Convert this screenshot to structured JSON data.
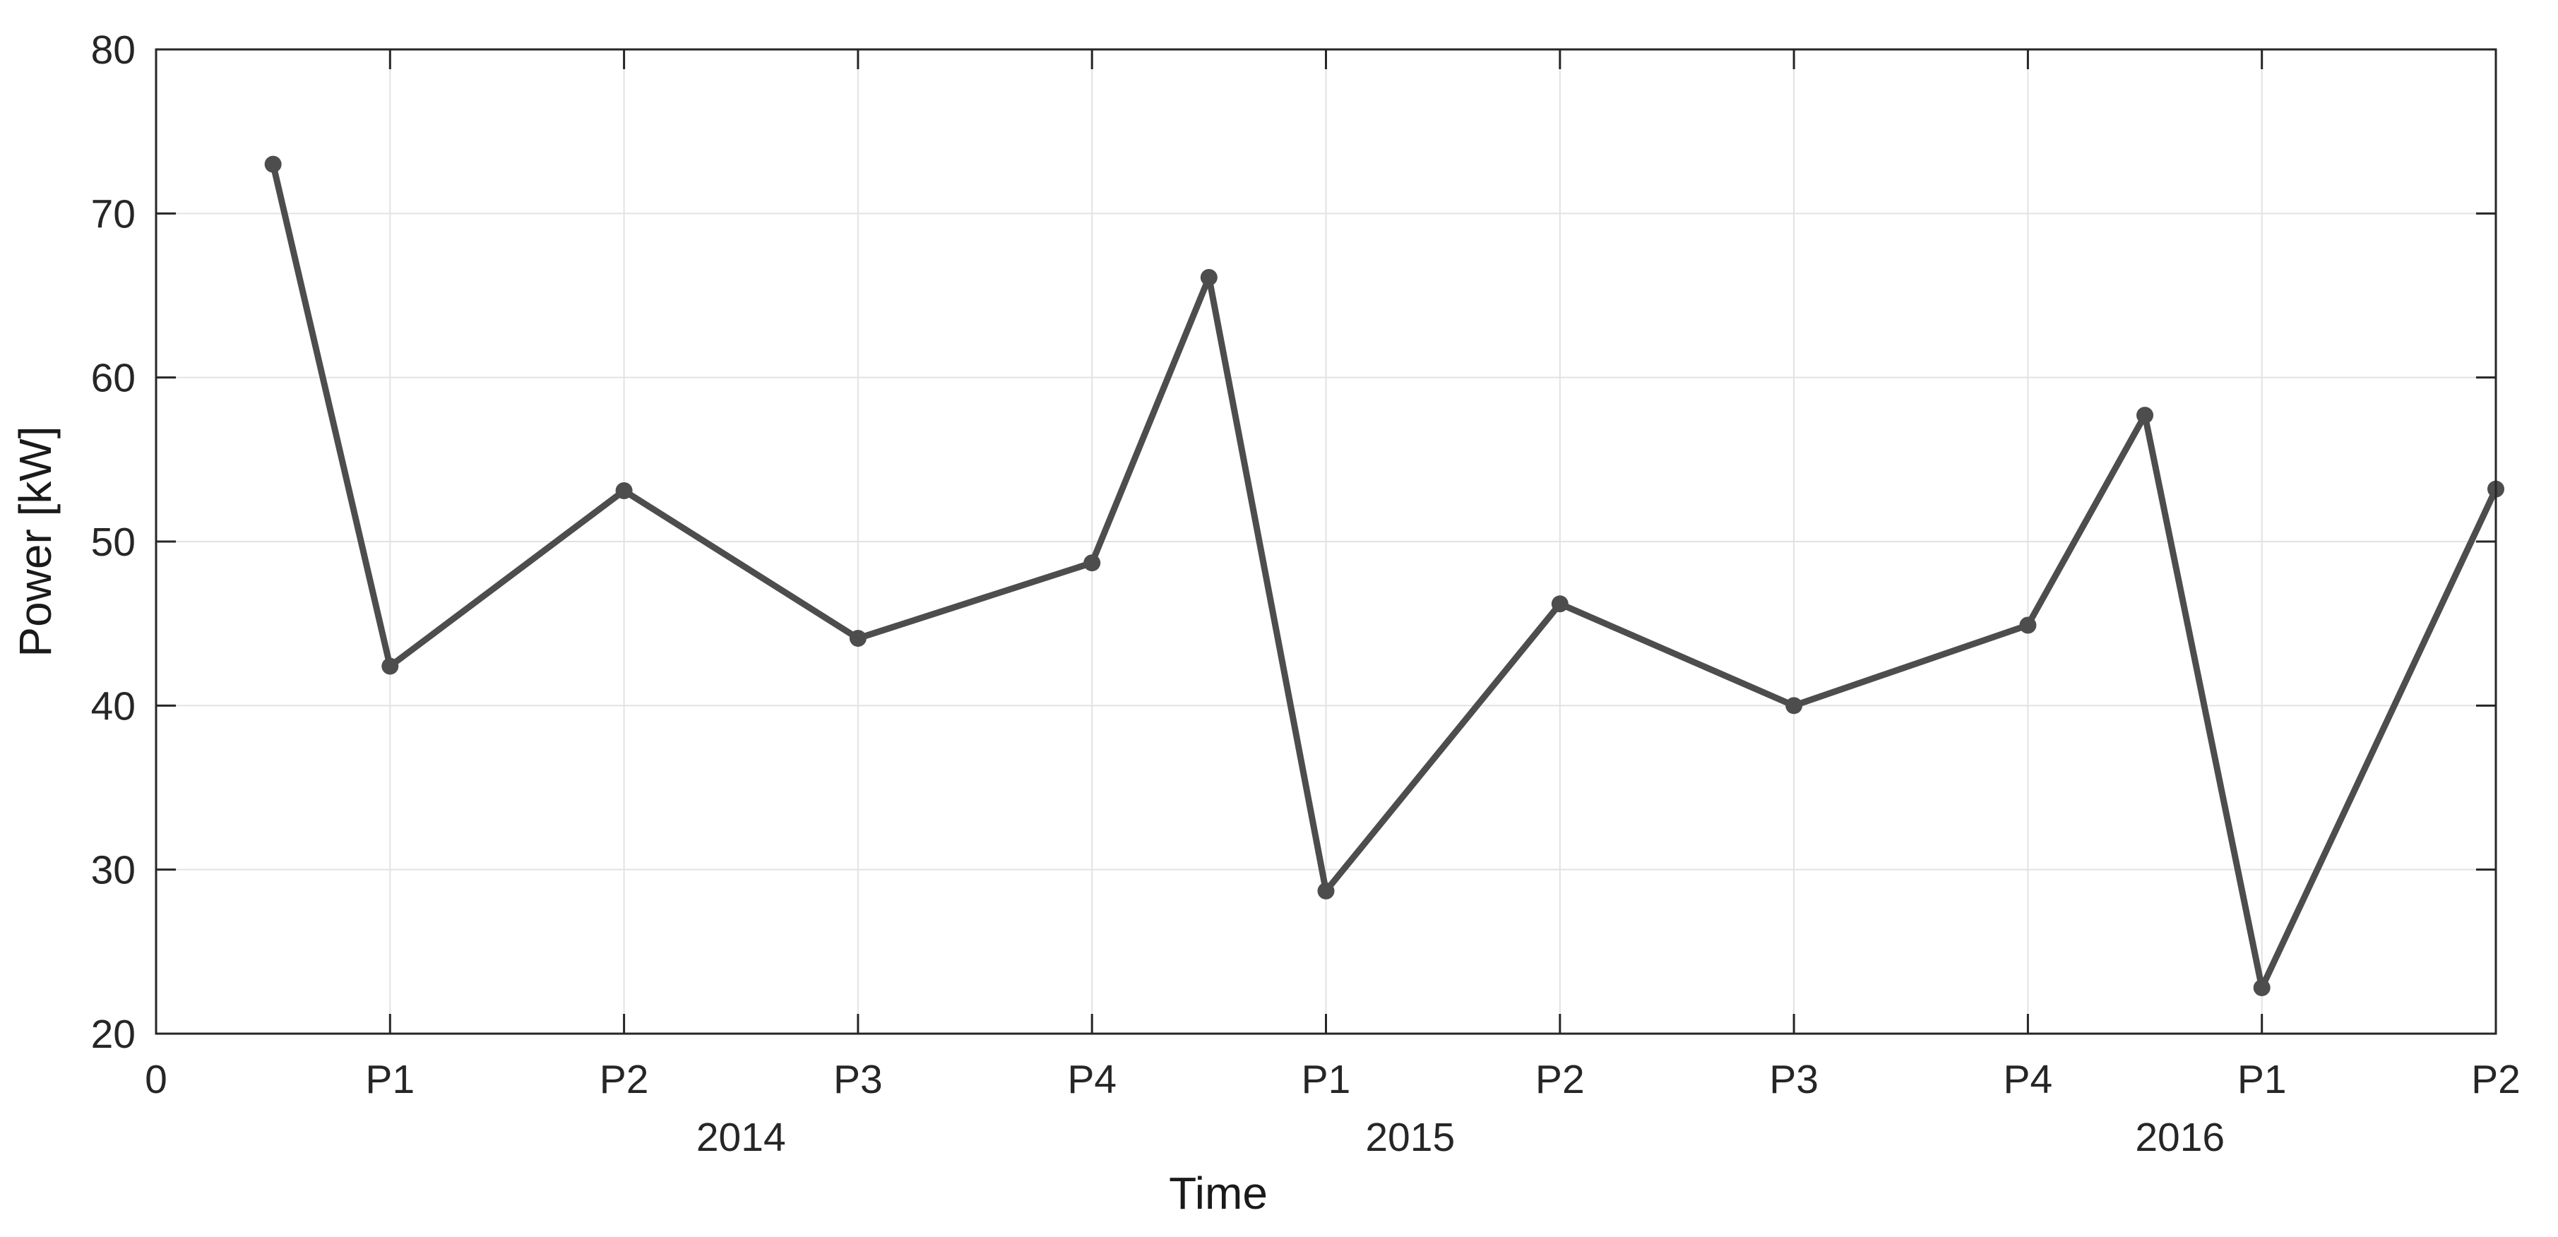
{
  "figure": {
    "background": "#ffffff",
    "description": "Line chart of electrical power per period over three years"
  },
  "chart_data": {
    "type": "line",
    "title": "",
    "xlabel": "Time",
    "ylabel": "Power [kW]",
    "grid": true,
    "legend": false,
    "x_axis": {
      "min": 0,
      "max": 10,
      "tick_positions": [
        0,
        1,
        2,
        3,
        4,
        5,
        6,
        7,
        8,
        9,
        10
      ],
      "tick_labels": [
        "0",
        "P1",
        "P2",
        "P3",
        "P4",
        "P1",
        "P2",
        "P3",
        "P4",
        "P1",
        "P2"
      ],
      "year_labels": [
        {
          "text": "2014",
          "position": 2.5
        },
        {
          "text": "2015",
          "position": 5.36
        },
        {
          "text": "2016",
          "position": 8.65
        }
      ]
    },
    "y_axis": {
      "min": 20,
      "max": 80,
      "step": 10,
      "tick_labels": [
        "20",
        "30",
        "40",
        "50",
        "60",
        "70",
        "80"
      ]
    },
    "series": [
      {
        "name": "Power",
        "x": [
          0.5,
          1,
          2,
          3,
          4,
          4.5,
          5,
          6,
          7,
          8,
          8.5,
          9,
          10
        ],
        "values": [
          73.0,
          42.4,
          53.1,
          44.1,
          48.7,
          66.1,
          28.7,
          46.2,
          40.0,
          44.9,
          57.7,
          22.8,
          53.2
        ],
        "marker": "circle"
      }
    ],
    "colors": {
      "line": "#4d4d4d",
      "marker": "#4d4d4d",
      "grid": "#e2e2e2",
      "axis": "#262626",
      "text": "#262626",
      "background": "#ffffff"
    }
  }
}
